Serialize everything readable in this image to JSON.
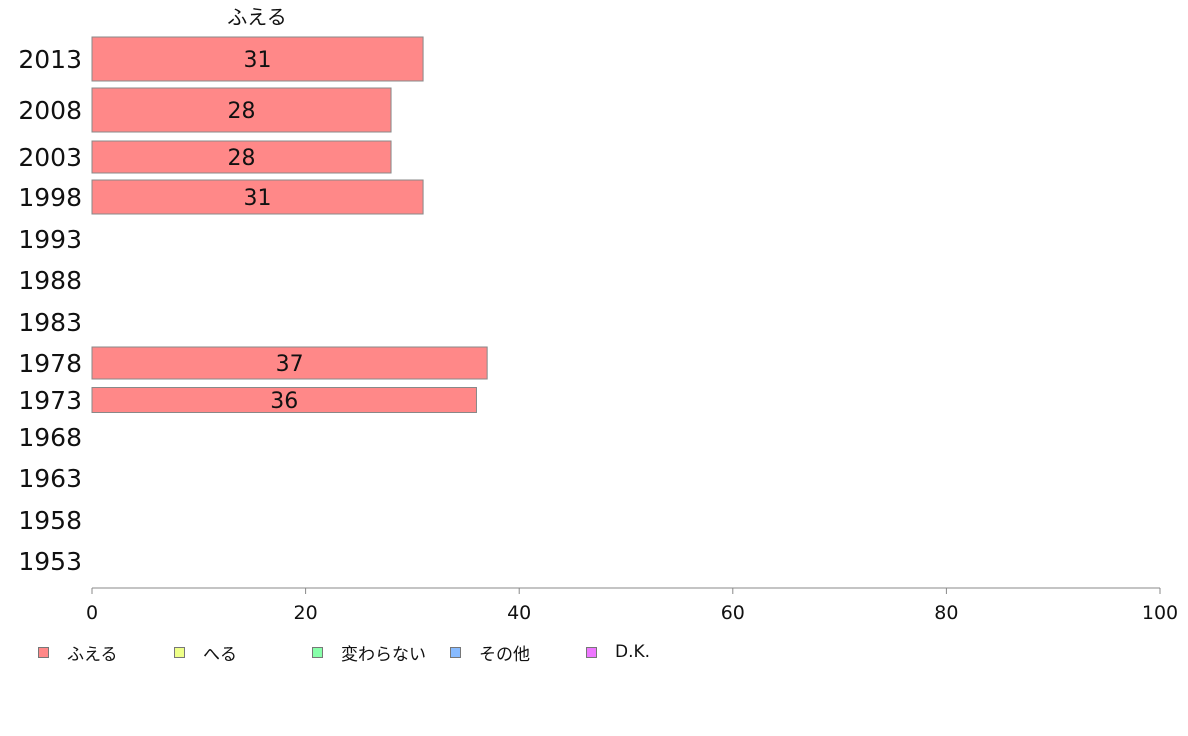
{
  "chart_data": {
    "type": "bar",
    "orientation": "horizontal",
    "series_title": "ふえる",
    "categories": [
      "2013",
      "2008",
      "2003",
      "1998",
      "1993",
      "1988",
      "1983",
      "1978",
      "1973",
      "1968",
      "1963",
      "1958",
      "1953"
    ],
    "series": [
      {
        "name": "ふえる",
        "color": "#ff8888",
        "values": [
          31,
          28,
          28,
          31,
          null,
          null,
          null,
          37,
          36,
          null,
          null,
          null,
          null
        ]
      }
    ],
    "value_labels": [
      "31",
      "28",
      "28",
      "31",
      "",
      "",
      "",
      "37",
      "36",
      "",
      "",
      "",
      ""
    ],
    "xticks": [
      0,
      20,
      40,
      60,
      80,
      100
    ],
    "xlim": [
      0,
      100
    ],
    "grid": false,
    "legend_position": "bottom-left",
    "legend": [
      {
        "label": "ふえる",
        "color": "#ff8888"
      },
      {
        "label": "へる",
        "color": "#eeff88"
      },
      {
        "label": "変わらない",
        "color": "#88ffaa"
      },
      {
        "label": "その他",
        "color": "#88bbff"
      },
      {
        "label": "D.K.",
        "color": "#ee77ff"
      }
    ]
  }
}
